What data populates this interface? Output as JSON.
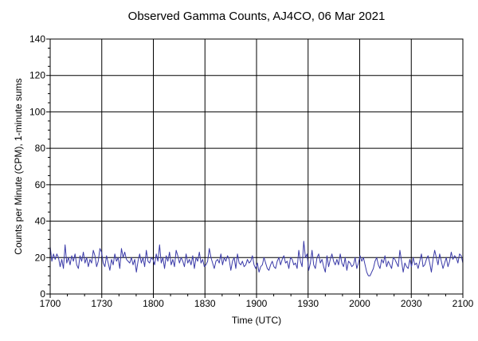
{
  "chart_data": {
    "type": "line",
    "title": "Observed Gamma Counts, AJ4CO, 06 Mar 2021",
    "xlabel": "Time (UTC)",
    "ylabel": "Counts per Minute (CPM), 1-minute sums",
    "x_ticks": [
      "1700",
      "1730",
      "1800",
      "1830",
      "1900",
      "1930",
      "2000",
      "2030",
      "2100"
    ],
    "y_ticks": [
      0,
      20,
      40,
      60,
      80,
      100,
      120,
      140
    ],
    "ylim": [
      0,
      140
    ],
    "xlim_minutes": [
      0,
      240
    ],
    "x_start": "1700",
    "grid": true,
    "line_color": "#3a3aa8",
    "series": [
      {
        "values": [
          26,
          18,
          22,
          19,
          22,
          20,
          15,
          19,
          14,
          27,
          17,
          20,
          16,
          21,
          18,
          22,
          16,
          14,
          21,
          18,
          23,
          17,
          20,
          15,
          19,
          17,
          24,
          21,
          15,
          18,
          25,
          23,
          17,
          15,
          21,
          17,
          13,
          19,
          16,
          22,
          18,
          20,
          14,
          25,
          20,
          23,
          19,
          18,
          17,
          20,
          16,
          19,
          12,
          18,
          22,
          17,
          20,
          15,
          24,
          18,
          17,
          20,
          19,
          16,
          22,
          18,
          27,
          17,
          20,
          14,
          21,
          18,
          23,
          16,
          19,
          15,
          24,
          21,
          17,
          20,
          18,
          15,
          22,
          17,
          19,
          16,
          21,
          14,
          20,
          18,
          23,
          17,
          19,
          15,
          16,
          18,
          25,
          20,
          17,
          14,
          18,
          19,
          17,
          22,
          16,
          20,
          18,
          21,
          19,
          13,
          18,
          20,
          14,
          22,
          17,
          16,
          18,
          15,
          16,
          19,
          17,
          18,
          21,
          16,
          14,
          17,
          12,
          15,
          16,
          20,
          17,
          14,
          13,
          16,
          18,
          15,
          14,
          18,
          20,
          16,
          19,
          21,
          17,
          18,
          14,
          20,
          19,
          16,
          17,
          14,
          24,
          18,
          15,
          29,
          20,
          22,
          13,
          17,
          24,
          16,
          14,
          20,
          22,
          17,
          19,
          15,
          12,
          21,
          15,
          19,
          22,
          18,
          16,
          19,
          16,
          22,
          17,
          15,
          20,
          13,
          18,
          17,
          15,
          16,
          20,
          14,
          17,
          21,
          18,
          20,
          16,
          12,
          10,
          10,
          12,
          14,
          18,
          20,
          16,
          14,
          19,
          17,
          21,
          15,
          18,
          16,
          14,
          20,
          19,
          17,
          15,
          24,
          18,
          12,
          17,
          15,
          14,
          19,
          15,
          20,
          16,
          17,
          14,
          18,
          22,
          15,
          16,
          19,
          21,
          17,
          12,
          19,
          24,
          20,
          16,
          22,
          18,
          14,
          17,
          20,
          15,
          18,
          23,
          19,
          21,
          20,
          17,
          22,
          21,
          17
        ]
      }
    ]
  }
}
